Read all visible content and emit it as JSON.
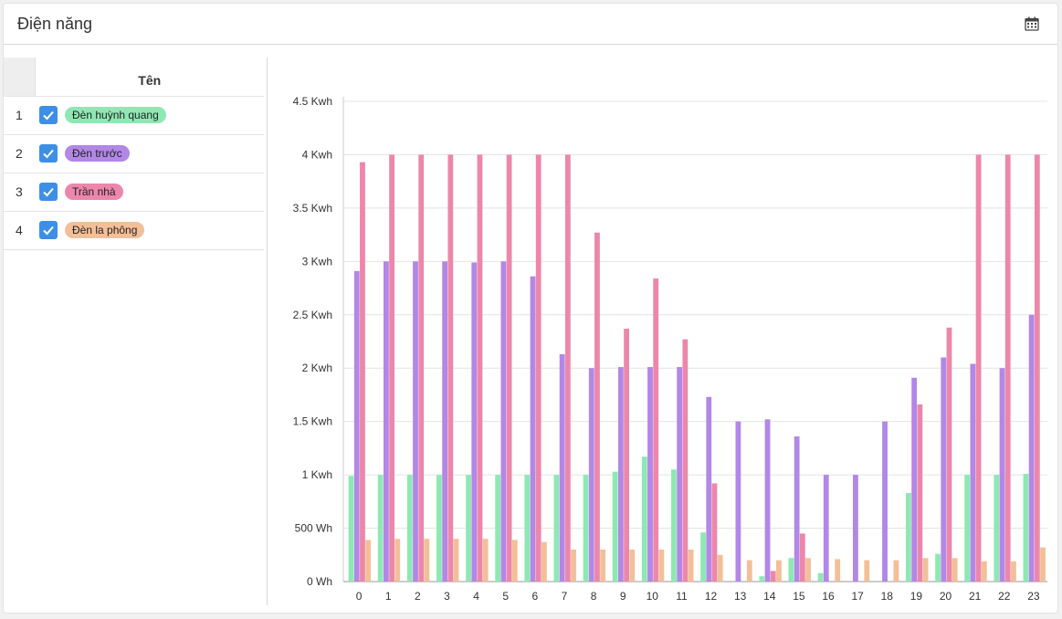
{
  "header": {
    "title": "Điện năng",
    "calendar_icon": "calendar-icon"
  },
  "legend_table": {
    "column_header": "Tên",
    "rows": [
      {
        "index": "1",
        "checked": true,
        "label": "Đèn huỳnh quang",
        "color": "#8ee8b4"
      },
      {
        "index": "2",
        "checked": true,
        "label": "Đèn trước",
        "color": "#b287e6"
      },
      {
        "index": "3",
        "checked": true,
        "label": "Trần nhà",
        "color": "#ec87ab"
      },
      {
        "index": "4",
        "checked": true,
        "label": "Đèn la phông",
        "color": "#f3bf98"
      }
    ]
  },
  "chart_data": {
    "type": "bar",
    "categories": [
      "0",
      "1",
      "2",
      "3",
      "4",
      "5",
      "6",
      "7",
      "8",
      "9",
      "10",
      "11",
      "12",
      "13",
      "14",
      "15",
      "16",
      "17",
      "18",
      "19",
      "20",
      "21",
      "22",
      "23"
    ],
    "y_ticks": [
      "0 Wh",
      "500 Wh",
      "1 Kwh",
      "1.5 Kwh",
      "2 Kwh",
      "2.5 Kwh",
      "3 Kwh",
      "3.5 Kwh",
      "4 Kwh",
      "4.5 Kwh"
    ],
    "ylim": [
      0,
      4.5
    ],
    "y_unit": "Kwh",
    "grid": true,
    "series": [
      {
        "name": "Đèn huỳnh quang",
        "color": "#8ee8b4",
        "values": [
          0.99,
          1.0,
          1.0,
          1.0,
          1.0,
          1.0,
          1.0,
          1.0,
          1.0,
          1.03,
          1.17,
          1.05,
          0.46,
          0,
          0.05,
          0.22,
          0.08,
          0,
          0,
          0.83,
          0.26,
          1.0,
          1.0,
          1.01
        ]
      },
      {
        "name": "Đèn trước",
        "color": "#b287e6",
        "values": [
          2.91,
          3.0,
          3.0,
          3.0,
          2.99,
          3.0,
          2.86,
          2.13,
          2.0,
          2.01,
          2.01,
          2.01,
          1.73,
          1.5,
          1.52,
          1.36,
          1.0,
          1.0,
          1.5,
          1.91,
          2.1,
          2.04,
          2.0,
          2.5
        ]
      },
      {
        "name": "Trần nhà",
        "color": "#ec87ab",
        "values": [
          3.93,
          4.0,
          4.0,
          4.0,
          4.0,
          4.0,
          4.0,
          4.0,
          3.27,
          2.37,
          2.84,
          2.27,
          0.92,
          0,
          0.1,
          0.45,
          0,
          0,
          0,
          1.66,
          2.38,
          4.0,
          4.0,
          4.0
        ]
      },
      {
        "name": "Đèn la phông",
        "color": "#f3bf98",
        "values": [
          0.39,
          0.4,
          0.4,
          0.4,
          0.4,
          0.39,
          0.37,
          0.3,
          0.3,
          0.3,
          0.3,
          0.3,
          0.25,
          0.2,
          0.2,
          0.22,
          0.21,
          0.2,
          0.2,
          0.22,
          0.22,
          0.19,
          0.19,
          0.32
        ]
      }
    ]
  }
}
